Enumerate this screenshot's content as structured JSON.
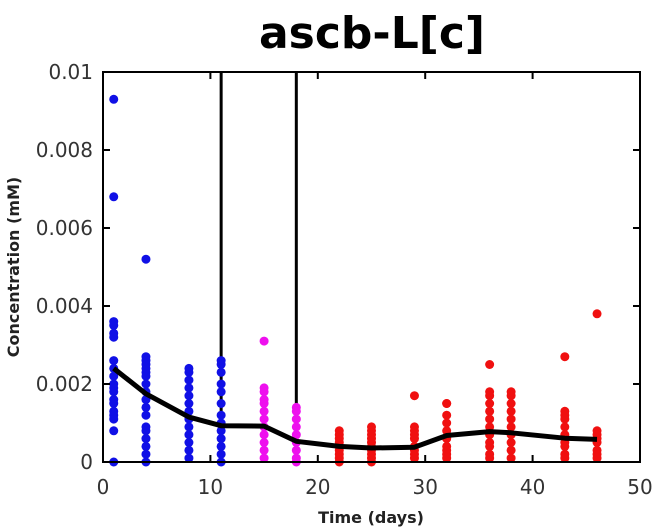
{
  "chart_data": {
    "type": "scatter",
    "title": "ascb-L[c]",
    "xlabel": "Time (days)",
    "ylabel": "Concentration (mM)",
    "xlim": [
      0,
      50
    ],
    "ylim": [
      0,
      0.01
    ],
    "xticks": [
      0,
      10,
      20,
      30,
      40,
      50
    ],
    "yticks": [
      0,
      0.002,
      0.004,
      0.006,
      0.008,
      0.01
    ],
    "xtick_labels": [
      "0",
      "10",
      "20",
      "30",
      "40",
      "50"
    ],
    "ytick_labels": [
      "0",
      "0.002",
      "0.004",
      "0.006",
      "0.008",
      "0.01"
    ],
    "vlines": [
      11,
      18
    ],
    "grid": false,
    "colors": {
      "early": "#1010e6",
      "mid": "#ee10ee",
      "late": "#f01010",
      "mean_line": "#000000"
    },
    "series": [
      {
        "color": "#1010e6",
        "points": [
          [
            1,
            0.0093
          ],
          [
            1,
            0.0068
          ],
          [
            1,
            0.0036
          ],
          [
            1,
            0.0035
          ],
          [
            1,
            0.0033
          ],
          [
            1,
            0.0032
          ],
          [
            1,
            0.0026
          ],
          [
            1,
            0.0024
          ],
          [
            1,
            0.0022
          ],
          [
            1,
            0.002
          ],
          [
            1,
            0.0019
          ],
          [
            1,
            0.0018
          ],
          [
            1,
            0.0016
          ],
          [
            1,
            0.0015
          ],
          [
            1,
            0.0013
          ],
          [
            1,
            0.0012
          ],
          [
            1,
            0.0011
          ],
          [
            1,
            0.0008
          ],
          [
            1,
            0.0
          ],
          [
            4,
            0.0052
          ],
          [
            4,
            0.0027
          ],
          [
            4,
            0.0026
          ],
          [
            4,
            0.0025
          ],
          [
            4,
            0.0024
          ],
          [
            4,
            0.0023
          ],
          [
            4,
            0.0022
          ],
          [
            4,
            0.002
          ],
          [
            4,
            0.0018
          ],
          [
            4,
            0.0016
          ],
          [
            4,
            0.0014
          ],
          [
            4,
            0.0012
          ],
          [
            4,
            0.0009
          ],
          [
            4,
            0.0008
          ],
          [
            4,
            0.0006
          ],
          [
            4,
            0.0004
          ],
          [
            4,
            0.0002
          ],
          [
            4,
            0.0
          ],
          [
            8,
            0.0024
          ],
          [
            8,
            0.0023
          ],
          [
            8,
            0.0021
          ],
          [
            8,
            0.0019
          ],
          [
            8,
            0.0017
          ],
          [
            8,
            0.0015
          ],
          [
            8,
            0.0013
          ],
          [
            8,
            0.0011
          ],
          [
            8,
            0.0009
          ],
          [
            8,
            0.0007
          ],
          [
            8,
            0.0005
          ],
          [
            8,
            0.0003
          ],
          [
            8,
            0.0001
          ],
          [
            11,
            0.0026
          ],
          [
            11,
            0.0025
          ],
          [
            11,
            0.0023
          ],
          [
            11,
            0.002
          ],
          [
            11,
            0.0018
          ],
          [
            11,
            0.0015
          ],
          [
            11,
            0.0012
          ],
          [
            11,
            0.001
          ],
          [
            11,
            0.0008
          ],
          [
            11,
            0.0006
          ],
          [
            11,
            0.0004
          ],
          [
            11,
            0.0002
          ],
          [
            11,
            0.0
          ]
        ]
      },
      {
        "color": "#ee10ee",
        "points": [
          [
            15,
            0.0031
          ],
          [
            15,
            0.0019
          ],
          [
            15,
            0.0018
          ],
          [
            15,
            0.0016
          ],
          [
            15,
            0.0015
          ],
          [
            15,
            0.0013
          ],
          [
            15,
            0.0011
          ],
          [
            15,
            0.0009
          ],
          [
            15,
            0.0007
          ],
          [
            15,
            0.0005
          ],
          [
            15,
            0.0003
          ],
          [
            15,
            0.0001
          ],
          [
            18,
            0.0014
          ],
          [
            18,
            0.0013
          ],
          [
            18,
            0.0011
          ],
          [
            18,
            0.0009
          ],
          [
            18,
            0.0007
          ],
          [
            18,
            0.0005
          ],
          [
            18,
            0.0003
          ],
          [
            18,
            0.0001
          ],
          [
            18,
            0.0
          ]
        ]
      },
      {
        "color": "#f01010",
        "points": [
          [
            22,
            0.0008
          ],
          [
            22,
            0.0007
          ],
          [
            22,
            0.0006
          ],
          [
            22,
            0.0005
          ],
          [
            22,
            0.0004
          ],
          [
            22,
            0.0003
          ],
          [
            22,
            0.0002
          ],
          [
            22,
            0.0001
          ],
          [
            22,
            0.0
          ],
          [
            25,
            0.0009
          ],
          [
            25,
            0.0008
          ],
          [
            25,
            0.0007
          ],
          [
            25,
            0.0006
          ],
          [
            25,
            0.0005
          ],
          [
            25,
            0.0004
          ],
          [
            25,
            0.0003
          ],
          [
            25,
            0.0002
          ],
          [
            25,
            0.0001
          ],
          [
            25,
            0.0
          ],
          [
            29,
            0.0017
          ],
          [
            29,
            0.0009
          ],
          [
            29,
            0.0008
          ],
          [
            29,
            0.0007
          ],
          [
            29,
            0.0006
          ],
          [
            29,
            0.0004
          ],
          [
            29,
            0.0003
          ],
          [
            29,
            0.0002
          ],
          [
            29,
            0.0001
          ],
          [
            32,
            0.0015
          ],
          [
            32,
            0.0015
          ],
          [
            32,
            0.0012
          ],
          [
            32,
            0.001
          ],
          [
            32,
            0.0008
          ],
          [
            32,
            0.0006
          ],
          [
            32,
            0.0004
          ],
          [
            32,
            0.0003
          ],
          [
            32,
            0.0002
          ],
          [
            32,
            0.0001
          ],
          [
            36,
            0.0025
          ],
          [
            36,
            0.0018
          ],
          [
            36,
            0.0017
          ],
          [
            36,
            0.0015
          ],
          [
            36,
            0.0013
          ],
          [
            36,
            0.0011
          ],
          [
            36,
            0.0009
          ],
          [
            36,
            0.0007
          ],
          [
            36,
            0.0005
          ],
          [
            36,
            0.0004
          ],
          [
            36,
            0.0002
          ],
          [
            36,
            0.0001
          ],
          [
            38,
            0.0018
          ],
          [
            38,
            0.0017
          ],
          [
            38,
            0.0015
          ],
          [
            38,
            0.0013
          ],
          [
            38,
            0.0011
          ],
          [
            38,
            0.0009
          ],
          [
            38,
            0.0007
          ],
          [
            38,
            0.0005
          ],
          [
            38,
            0.0003
          ],
          [
            38,
            0.0001
          ],
          [
            43,
            0.0027
          ],
          [
            43,
            0.0013
          ],
          [
            43,
            0.0012
          ],
          [
            43,
            0.0011
          ],
          [
            43,
            0.0009
          ],
          [
            43,
            0.0007
          ],
          [
            43,
            0.0005
          ],
          [
            43,
            0.0004
          ],
          [
            43,
            0.0002
          ],
          [
            43,
            0.0001
          ],
          [
            46,
            0.0038
          ],
          [
            46,
            0.0008
          ],
          [
            46,
            0.0007
          ],
          [
            46,
            0.0006
          ],
          [
            46,
            0.0005
          ],
          [
            46,
            0.0003
          ],
          [
            46,
            0.0002
          ],
          [
            46,
            0.0001
          ]
        ]
      }
    ],
    "mean_line": {
      "color": "#000000",
      "x": [
        1,
        4,
        8,
        11,
        15,
        18,
        22,
        25,
        29,
        32,
        36,
        38,
        43,
        46
      ],
      "y": [
        0.0024,
        0.00175,
        0.00115,
        0.00093,
        0.00092,
        0.00053,
        0.0004,
        0.00036,
        0.00038,
        0.00068,
        0.00078,
        0.00075,
        0.00061,
        0.00058
      ]
    }
  }
}
